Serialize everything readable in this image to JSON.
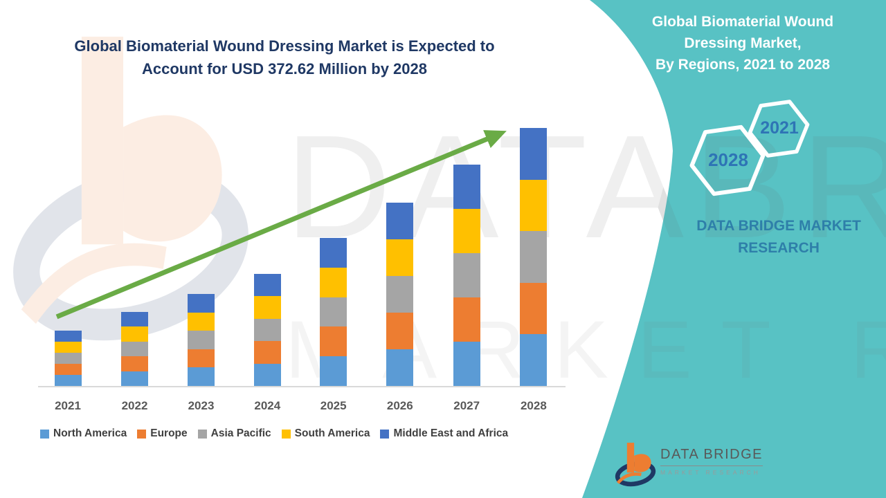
{
  "main_title": {
    "line1": "Global Biomaterial Wound Dressing Market is Expected to",
    "line2": "Account for USD 372.62 Million by 2028"
  },
  "side_panel": {
    "background_color": "#58C2C4",
    "title_line1": "Global Biomaterial Wound",
    "title_line2": "Dressing Market,",
    "title_line3": "By Regions, 2021 to 2028",
    "hexagon_small_label": "2021",
    "hexagon_large_label": "2028",
    "brand_line1": "DATA BRIDGE MARKET",
    "brand_line2": "RESEARCH"
  },
  "chart_data": {
    "type": "bar",
    "stacked": true,
    "title": "Global Biomaterial Wound Dressing Market, By Regions, 2021 to 2028",
    "unit": "USD Million",
    "categories": [
      "2021",
      "2022",
      "2023",
      "2024",
      "2025",
      "2026",
      "2027",
      "2028"
    ],
    "series": [
      {
        "name": "North America",
        "color": "#5B9BD5",
        "values": [
          16,
          21.4,
          26.6,
          32.4,
          42.8,
          53,
          64,
          74.5
        ]
      },
      {
        "name": "Europe",
        "color": "#ED7D31",
        "values": [
          16,
          21.4,
          26.6,
          32.4,
          42.8,
          53,
          64,
          74.5
        ]
      },
      {
        "name": "Asia Pacific",
        "color": "#A5A5A5",
        "values": [
          16,
          21.4,
          26.6,
          32.4,
          42.8,
          53,
          64,
          74.5
        ]
      },
      {
        "name": "South America",
        "color": "#FFC000",
        "values": [
          16,
          21.4,
          26.6,
          32.4,
          42.8,
          53,
          64,
          74.62
        ]
      },
      {
        "name": "Middle East and Africa",
        "color": "#4472C4",
        "values": [
          16,
          21.4,
          26.6,
          32.4,
          42.8,
          53,
          64,
          74.5
        ]
      }
    ],
    "totals_estimated": [
      80,
      107,
      133,
      162,
      214,
      265,
      320,
      372.62
    ],
    "highlight_total": {
      "year": "2028",
      "value": "USD 372.62 Million"
    },
    "trend_arrow_color": "#6AAB46",
    "legend_position": "bottom",
    "gridlines": false,
    "xlabel": "",
    "ylabel": ""
  },
  "footer_logo": {
    "brand": "DATA BRIDGE",
    "sub": "MARKET RESEARCH"
  },
  "watermark": {
    "text_line1": "DATABRIDGE",
    "text_line2": "MARKET RESEARCH"
  }
}
